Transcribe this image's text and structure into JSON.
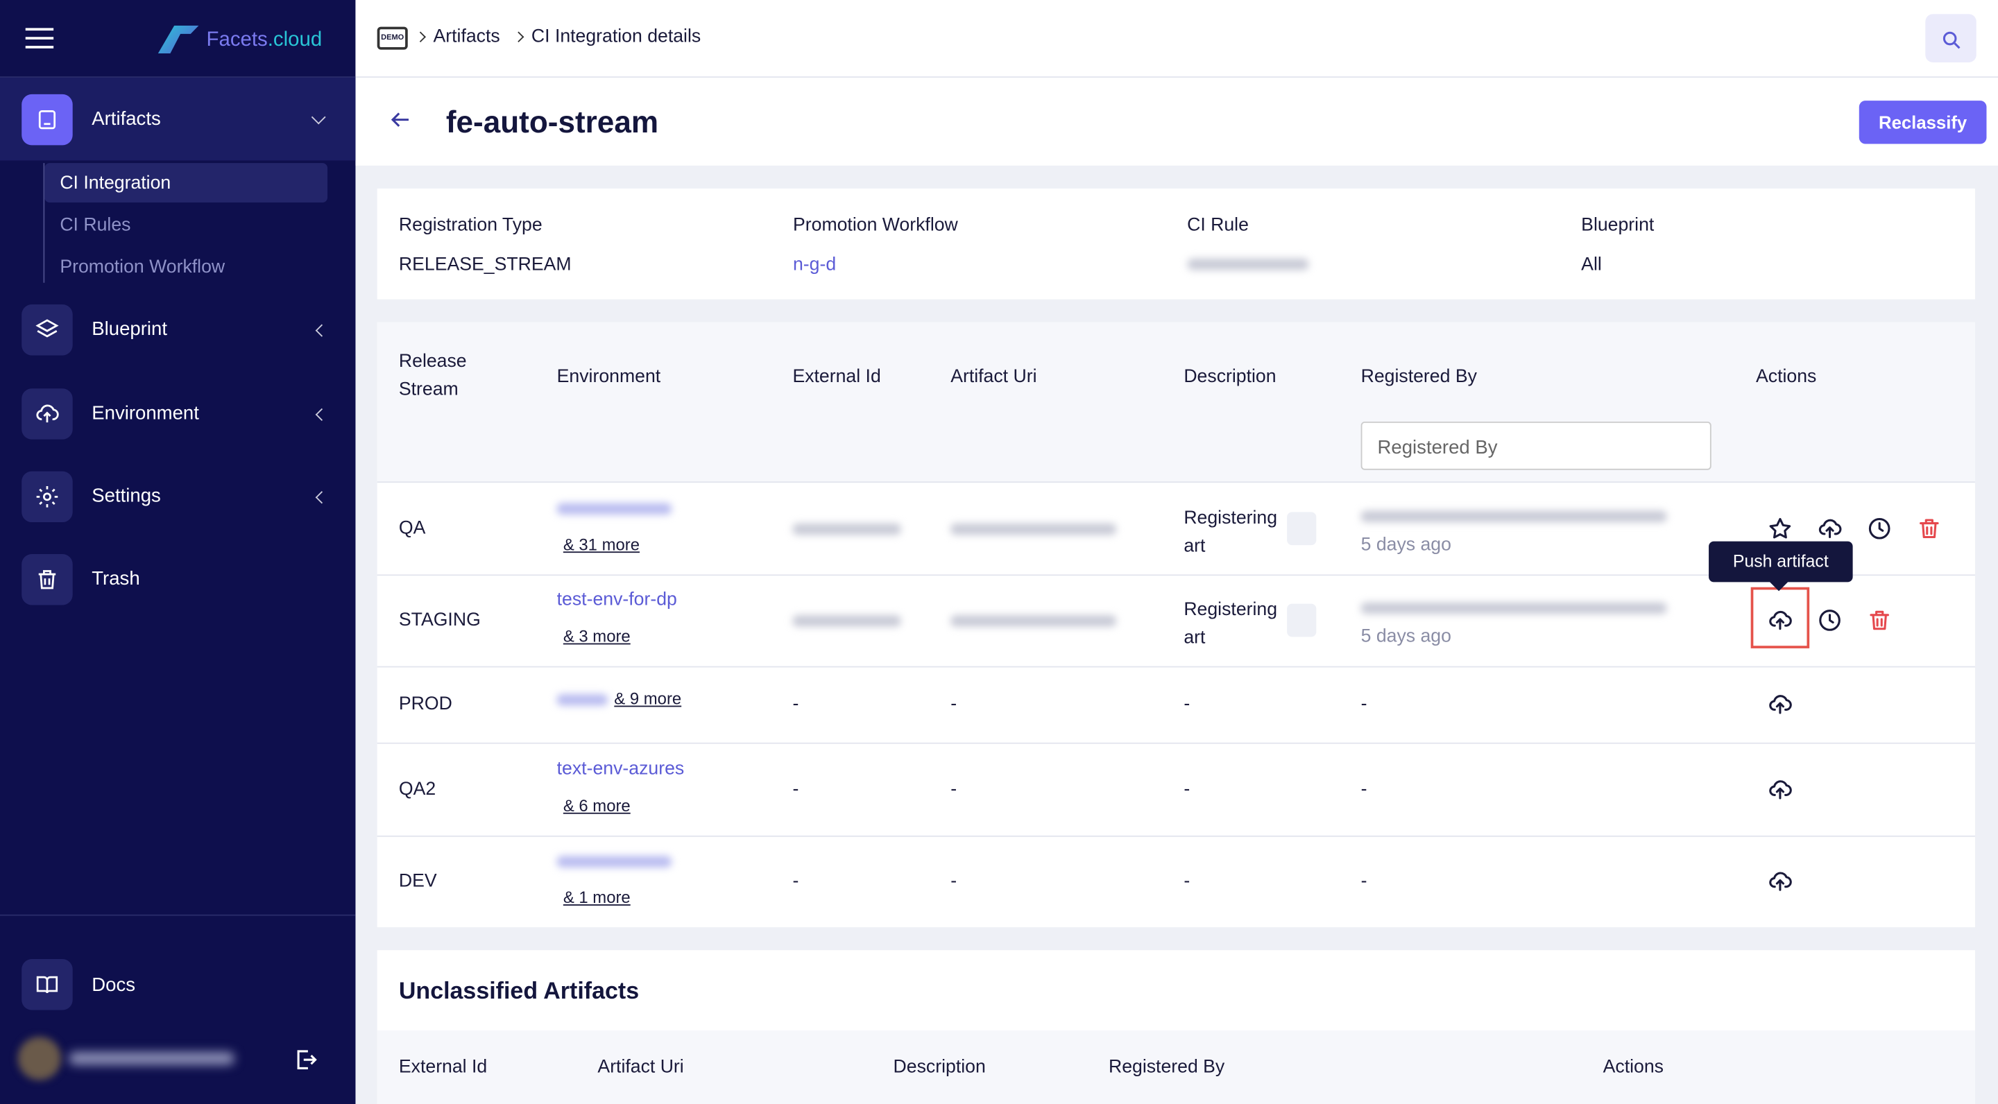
{
  "sidebar": {
    "brand": {
      "name": "Facets",
      "suffix": ".cloud"
    },
    "nav": [
      {
        "label": "Artifacts",
        "children": [
          "CI Integration",
          "CI Rules",
          "Promotion Workflow"
        ]
      },
      {
        "label": "Blueprint"
      },
      {
        "label": "Environment"
      },
      {
        "label": "Settings"
      },
      {
        "label": "Trash"
      }
    ],
    "docs": "Docs"
  },
  "header": {
    "breadcrumb": [
      "Artifacts",
      "CI Integration details"
    ],
    "badge": "DEMO"
  },
  "page": {
    "title": "fe-auto-stream",
    "button": "Reclassify"
  },
  "info": [
    {
      "label": "Registration Type",
      "value": "RELEASE_STREAM"
    },
    {
      "label": "Promotion Workflow",
      "value": "n-g-d"
    },
    {
      "label": "CI Rule"
    },
    {
      "label": "Blueprint",
      "value": "All"
    }
  ],
  "table": {
    "headers": [
      "Release Stream",
      "Environment",
      "External Id",
      "Artifact Uri",
      "Description",
      "Registered By",
      "Actions"
    ],
    "filter_placeholder": "Registered By",
    "rows": [
      {
        "stream": "QA",
        "more": "& 31 more",
        "description": "Registering art",
        "registered_time": "5 days ago"
      },
      {
        "stream": "STAGING",
        "environment": "test-env-for-dp",
        "more": "& 3 more",
        "description": "Registering art",
        "registered_time": "5 days ago"
      },
      {
        "stream": "PROD",
        "more": "& 9 more",
        "external_id": "-",
        "artifact_uri": "-",
        "description": "-",
        "registered_by": "-"
      },
      {
        "stream": "QA2",
        "environment": "text-env-azures",
        "more": "& 6 more",
        "external_id": "-",
        "artifact_uri": "-",
        "description": "-",
        "registered_by": "-"
      },
      {
        "stream": "DEV",
        "more": "& 1 more",
        "external_id": "-",
        "artifact_uri": "-",
        "description": "-",
        "registered_by": "-"
      }
    ]
  },
  "tooltip": "Push artifact",
  "unclassified": {
    "title": "Unclassified Artifacts",
    "headers": [
      "External Id",
      "Artifact Uri",
      "Description",
      "Registered By",
      "Actions"
    ]
  }
}
